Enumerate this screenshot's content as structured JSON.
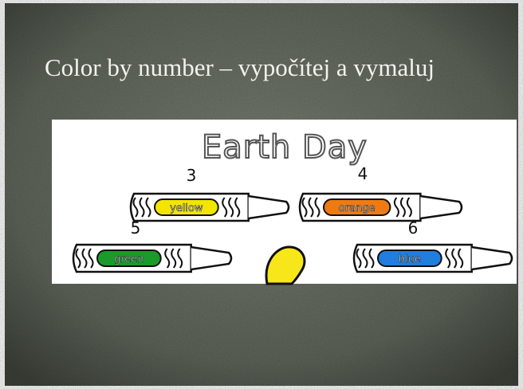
{
  "slide": {
    "title": "Color by number – vypočítej a vymaluj",
    "image": {
      "heading": "Earth Day",
      "crayons": [
        {
          "number": 3,
          "label": "yellow",
          "color": "#f2e600"
        },
        {
          "number": 4,
          "label": "orange",
          "color": "#f07a12"
        },
        {
          "number": 5,
          "label": "green",
          "color": "#1a9a2a"
        },
        {
          "number": 6,
          "label": "blue",
          "color": "#1f7ee0"
        }
      ]
    }
  }
}
